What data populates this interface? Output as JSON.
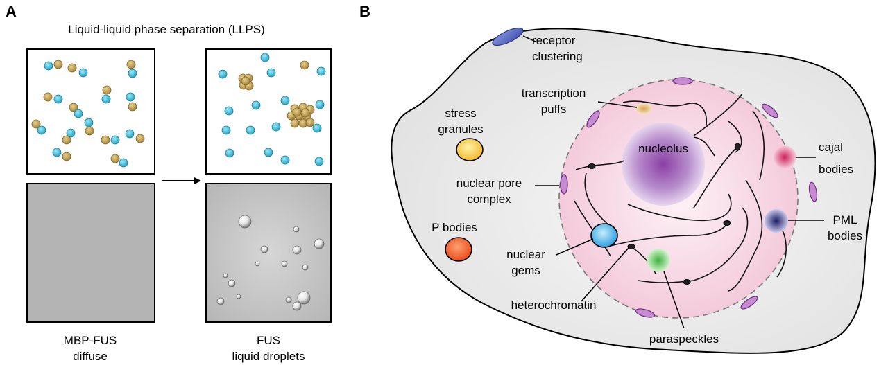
{
  "panel_a": {
    "letter": "A",
    "title": "Liquid-liquid phase separation (LLPS)",
    "left_caption_line1": "MBP-FUS",
    "left_caption_line2": "diffuse",
    "right_caption_line1": "FUS",
    "right_caption_line2": "liquid droplets"
  },
  "panel_b": {
    "letter": "B",
    "labels": {
      "receptor_line1": "receptor",
      "receptor_line2": "clustering",
      "transcription_line1": "transcription",
      "transcription_line2": "puffs",
      "stress_line1": "stress",
      "stress_line2": "granules",
      "nucleolus": "nucleolus",
      "cajal_line1": "cajal",
      "cajal_line2": "bodies",
      "pore_line1": "nuclear pore",
      "pore_line2": "complex",
      "pml_line1": "PML",
      "pml_line2": "bodies",
      "p_bodies": "P bodies",
      "gems_line1": "nuclear",
      "gems_line2": "gems",
      "heterochromatin": "heterochromatin",
      "paraspeckles": "paraspeckles"
    }
  },
  "colors": {
    "cyan_molecule": "#3cc0dc",
    "tan_molecule": "#c8a85a",
    "cell_fill": "#ebebeb",
    "nucleus_fill": "#f7d3e3",
    "nucleolus": "#8a4aa8",
    "cajal": "#d6406a",
    "pml": "#2a2a70",
    "stress_granule": "#f3c33a",
    "p_body": "#f05a28",
    "gem": "#2e9fe0",
    "paraspeckle": "#5bc45a",
    "pore": "#c58ad0",
    "receptor": "#5a6cc8"
  }
}
